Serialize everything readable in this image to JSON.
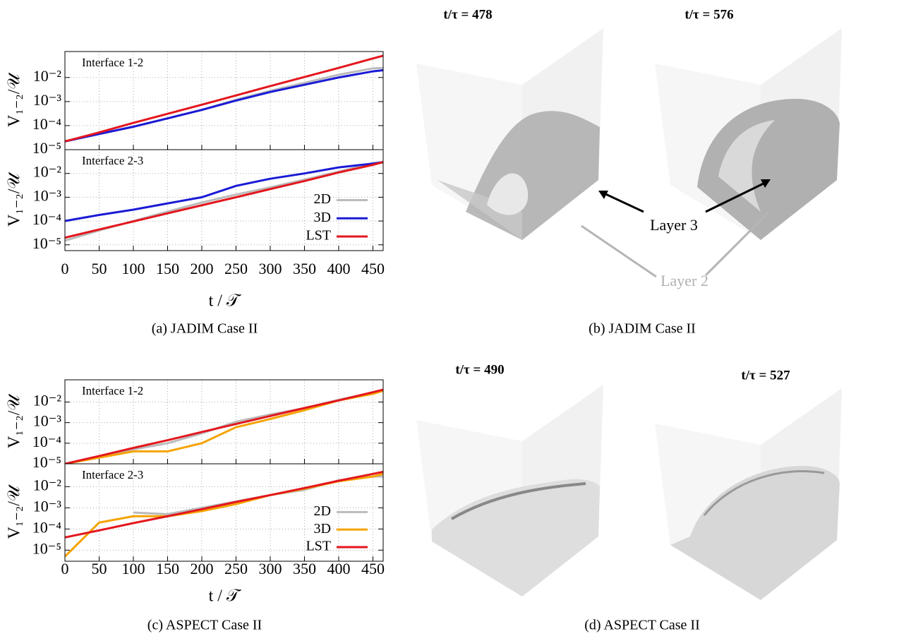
{
  "chart_data": [
    {
      "type": "line",
      "annotation": "Interface 1-2",
      "ylabel": "V₁₋₂/𝒰",
      "log_scale": true,
      "grid": true,
      "xlim": [
        0,
        465
      ],
      "xticks": [
        0,
        50,
        100,
        150,
        200,
        250,
        300,
        350,
        400,
        450
      ],
      "ylim": [
        1e-05,
        0.12
      ],
      "yticks": [
        {
          "value": 1e-05,
          "label": "10⁻⁵"
        },
        {
          "value": 0.0001,
          "label": "10⁻⁴"
        },
        {
          "value": 0.001,
          "label": "10⁻³"
        },
        {
          "value": 0.01,
          "label": "10⁻²"
        }
      ],
      "x": [
        0,
        50,
        100,
        150,
        200,
        250,
        300,
        350,
        400,
        450,
        465
      ],
      "series": [
        {
          "color": "#bbbbbb",
          "values": [
            2.2e-05,
            4.5e-05,
            9e-05,
            0.0002,
            0.00045,
            0.0012,
            0.0028,
            0.006,
            0.013,
            0.024,
            0.025
          ]
        },
        {
          "color": "#1a1ad6",
          "values": [
            2.2e-05,
            4.5e-05,
            9e-05,
            0.0002,
            0.00045,
            0.0011,
            0.0025,
            0.005,
            0.01,
            0.018,
            0.02
          ]
        },
        {
          "color": "#e3161d",
          "values": [
            2.2e-05,
            5.2e-05,
            0.00013,
            0.00031,
            0.00074,
            0.0018,
            0.0044,
            0.0105,
            0.025,
            0.062,
            0.08
          ]
        }
      ]
    },
    {
      "type": "line",
      "annotation": "Interface 2-3",
      "ylabel": "V₁₋₂/𝒰",
      "xlabel": "t / 𝒯",
      "log_scale": true,
      "grid": true,
      "legend": "lower right",
      "xlim": [
        0,
        465
      ],
      "xticks": [
        0,
        50,
        100,
        150,
        200,
        250,
        300,
        350,
        400,
        450
      ],
      "ylim": [
        5.7e-06,
        0.1
      ],
      "yticks": [
        {
          "value": 1e-05,
          "label": "10⁻⁵"
        },
        {
          "value": 0.0001,
          "label": "10⁻⁴"
        },
        {
          "value": 0.001,
          "label": "10⁻³"
        },
        {
          "value": 0.01,
          "label": "10⁻²"
        }
      ],
      "x": [
        0,
        50,
        100,
        150,
        200,
        250,
        300,
        350,
        400,
        450,
        465
      ],
      "series": [
        {
          "name": "2D",
          "color": "#bbbbbb",
          "values": [
            1.5e-05,
            4e-05,
            0.0001,
            0.00025,
            0.0006,
            0.0013,
            0.0026,
            0.0055,
            0.012,
            0.027,
            0.028
          ]
        },
        {
          "name": "3D",
          "color": "#1a1ad6",
          "values": [
            0.0001,
            0.00018,
            0.0003,
            0.00055,
            0.001,
            0.003,
            0.006,
            0.01,
            0.018,
            0.026,
            0.03
          ]
        },
        {
          "name": "LST",
          "color": "#e3161d",
          "values": [
            2e-05,
            4.4e-05,
            9.6e-05,
            0.00021,
            0.00046,
            0.001,
            0.0022,
            0.0048,
            0.011,
            0.023,
            0.03
          ]
        }
      ]
    },
    {
      "type": "line",
      "annotation": "Interface 1-2",
      "ylabel": "V₁₋₂/𝒰",
      "log_scale": true,
      "grid": true,
      "xlim": [
        0,
        465
      ],
      "xticks": [
        0,
        50,
        100,
        150,
        200,
        250,
        300,
        350,
        400,
        450
      ],
      "ylim": [
        1e-05,
        0.12
      ],
      "yticks": [
        {
          "value": 1e-05,
          "label": "10⁻⁵"
        },
        {
          "value": 0.0001,
          "label": "10⁻⁴"
        },
        {
          "value": 0.001,
          "label": "10⁻³"
        },
        {
          "value": 0.01,
          "label": "10⁻²"
        }
      ],
      "x": [
        0,
        50,
        100,
        150,
        200,
        250,
        300,
        350,
        400,
        450,
        465
      ],
      "series": [
        {
          "color": "#bbbbbb",
          "values": [
            1e-05,
            2e-05,
            5e-05,
            0.0001,
            0.0003,
            0.0011,
            0.0025,
            0.005,
            0.013,
            0.028,
            0.035
          ]
        },
        {
          "color": "#f5a300",
          "values": [
            1e-05,
            2e-05,
            4e-05,
            4e-05,
            0.0001,
            0.0006,
            0.0015,
            0.004,
            0.012,
            0.025,
            0.035
          ]
        },
        {
          "color": "#e3161d",
          "values": [
            1e-05,
            2.4e-05,
            5.9e-05,
            0.00014,
            0.00035,
            0.00086,
            0.0021,
            0.0051,
            0.012,
            0.03,
            0.04
          ]
        }
      ]
    },
    {
      "type": "line",
      "annotation": "Interface 2-3",
      "ylabel": "V₁₋₂/𝒰",
      "xlabel": "t / 𝒯",
      "log_scale": true,
      "grid": true,
      "legend": "lower right",
      "xlim": [
        0,
        465
      ],
      "xticks": [
        0,
        50,
        100,
        150,
        200,
        250,
        300,
        350,
        400,
        450
      ],
      "ylim": [
        3e-06,
        0.12
      ],
      "yticks": [
        {
          "value": 1e-05,
          "label": "10⁻⁵"
        },
        {
          "value": 0.0001,
          "label": "10⁻⁴"
        },
        {
          "value": 0.001,
          "label": "10⁻³"
        },
        {
          "value": 0.01,
          "label": "10⁻²"
        }
      ],
      "x": [
        0,
        50,
        100,
        150,
        200,
        250,
        300,
        350,
        400,
        450,
        465
      ],
      "series": [
        {
          "name": "2D",
          "color": "#bbbbbb",
          "values": [
            null,
            null,
            0.0006,
            0.0005,
            0.001,
            0.002,
            0.004,
            0.007,
            0.02,
            0.03,
            0.03
          ]
        },
        {
          "name": "3D",
          "color": "#f5a300",
          "values": [
            5e-06,
            0.0002,
            0.0004,
            0.0004,
            0.0007,
            0.0015,
            0.004,
            0.008,
            0.018,
            0.03,
            0.04
          ]
        },
        {
          "name": "LST",
          "color": "#e3161d",
          "values": [
            4e-05,
            8.6e-05,
            0.00019,
            0.0004,
            0.00086,
            0.0019,
            0.004,
            0.0086,
            0.019,
            0.04,
            0.05
          ]
        }
      ]
    }
  ],
  "captions": [
    "(a) JADIM Case II",
    "(b) JADIM Case II",
    "(c) ASPECT Case II",
    "(d) ASPECT Case II"
  ],
  "renders": [
    {
      "time_labels": [
        "t/τ = 478",
        "t/τ = 576"
      ],
      "annotations": [
        "Layer 3",
        "Layer 2"
      ]
    },
    {
      "time_labels": [
        "t/τ = 490",
        "t/τ = 527"
      ]
    }
  ]
}
